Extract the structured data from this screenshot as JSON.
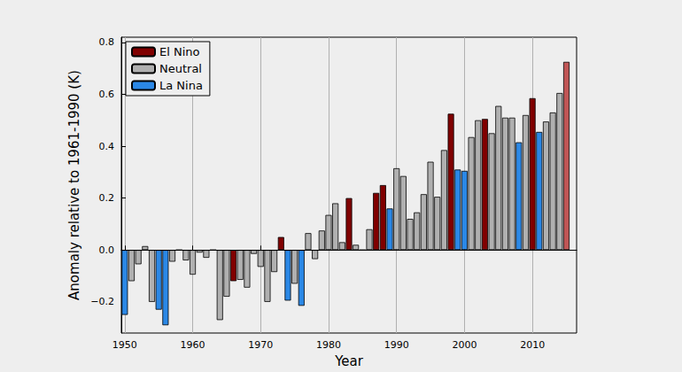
{
  "chart_data": {
    "type": "bar",
    "xlabel": "Year",
    "ylabel": "Anomaly relative to 1961-1990 (K)",
    "x": [
      1950,
      1951,
      1952,
      1953,
      1954,
      1955,
      1956,
      1957,
      1958,
      1959,
      1960,
      1961,
      1962,
      1963,
      1964,
      1965,
      1966,
      1967,
      1968,
      1969,
      1970,
      1971,
      1972,
      1973,
      1974,
      1975,
      1976,
      1977,
      1978,
      1979,
      1980,
      1981,
      1982,
      1983,
      1984,
      1985,
      1986,
      1987,
      1988,
      1989,
      1990,
      1991,
      1992,
      1993,
      1994,
      1995,
      1996,
      1997,
      1998,
      1999,
      2000,
      2001,
      2002,
      2003,
      2004,
      2005,
      2006,
      2007,
      2008,
      2009,
      2010,
      2011,
      2012,
      2013,
      2014,
      2015
    ],
    "series": [
      {
        "name": "El Nino",
        "color": "#800000",
        "values": [
          null,
          null,
          null,
          null,
          null,
          null,
          null,
          null,
          null,
          null,
          null,
          null,
          null,
          null,
          null,
          null,
          -0.12,
          null,
          null,
          null,
          null,
          null,
          null,
          0.05,
          null,
          null,
          null,
          null,
          null,
          null,
          null,
          null,
          null,
          0.2,
          null,
          null,
          null,
          0.22,
          0.25,
          null,
          null,
          null,
          null,
          null,
          null,
          null,
          null,
          null,
          0.525,
          null,
          null,
          null,
          null,
          0.505,
          null,
          null,
          null,
          null,
          null,
          null,
          0.585,
          null,
          null,
          null,
          null,
          0.725
        ],
        "colors": [
          null,
          null,
          null,
          null,
          null,
          null,
          null,
          null,
          null,
          null,
          null,
          null,
          null,
          null,
          null,
          null,
          "#800000",
          null,
          null,
          null,
          null,
          null,
          null,
          "#800000",
          null,
          null,
          null,
          null,
          null,
          null,
          null,
          null,
          null,
          "#800000",
          null,
          null,
          null,
          "#800000",
          "#800000",
          null,
          null,
          null,
          null,
          null,
          null,
          null,
          null,
          null,
          "#800000",
          null,
          null,
          null,
          null,
          "#800000",
          null,
          null,
          null,
          null,
          null,
          null,
          "#800000",
          null,
          null,
          null,
          null,
          "#c05555"
        ]
      },
      {
        "name": "Neutral",
        "color": "#b0b0b0",
        "values": [
          null,
          -0.12,
          -0.055,
          0.015,
          -0.2,
          null,
          null,
          -0.045,
          0.0,
          -0.04,
          -0.095,
          -0.01,
          -0.03,
          0.0,
          -0.27,
          -0.18,
          null,
          -0.115,
          -0.145,
          -0.015,
          -0.065,
          -0.2,
          -0.085,
          null,
          null,
          -0.13,
          null,
          0.065,
          -0.035,
          0.075,
          0.135,
          0.18,
          0.03,
          null,
          0.02,
          0.0,
          0.08,
          null,
          null,
          null,
          0.315,
          0.285,
          0.12,
          0.145,
          0.215,
          0.34,
          0.205,
          0.385,
          null,
          null,
          null,
          0.435,
          0.5,
          null,
          0.45,
          0.555,
          0.51,
          0.51,
          null,
          0.52,
          null,
          null,
          0.495,
          0.53,
          0.605,
          null
        ]
      },
      {
        "name": "La Nina",
        "color": "#2b88e6",
        "values": [
          -0.25,
          null,
          null,
          null,
          null,
          -0.23,
          -0.29,
          null,
          null,
          null,
          null,
          null,
          null,
          null,
          null,
          null,
          null,
          null,
          null,
          null,
          null,
          null,
          null,
          null,
          -0.195,
          null,
          -0.215,
          null,
          null,
          null,
          null,
          null,
          null,
          null,
          null,
          null,
          null,
          null,
          null,
          0.16,
          null,
          null,
          null,
          null,
          null,
          null,
          null,
          null,
          null,
          0.31,
          0.305,
          null,
          null,
          null,
          null,
          null,
          null,
          null,
          0.415,
          null,
          null,
          0.455,
          null,
          null,
          null,
          null
        ]
      }
    ],
    "xlim": [
      1949.5,
      2016.5
    ],
    "xticks": [
      1950,
      1960,
      1970,
      1980,
      1990,
      2000,
      2010
    ],
    "ylim": [
      -0.32,
      0.82
    ],
    "yticks": [
      {
        "value": -0.2,
        "label": "−0.2"
      },
      {
        "value": 0,
        "label": "0.0"
      },
      {
        "value": 0.2,
        "label": "0.2"
      },
      {
        "value": 0.4,
        "label": "0.4"
      },
      {
        "value": 0.6,
        "label": "0.6"
      },
      {
        "value": 0.8,
        "label": "0.8"
      }
    ],
    "grid": true,
    "legend": "upper left"
  }
}
